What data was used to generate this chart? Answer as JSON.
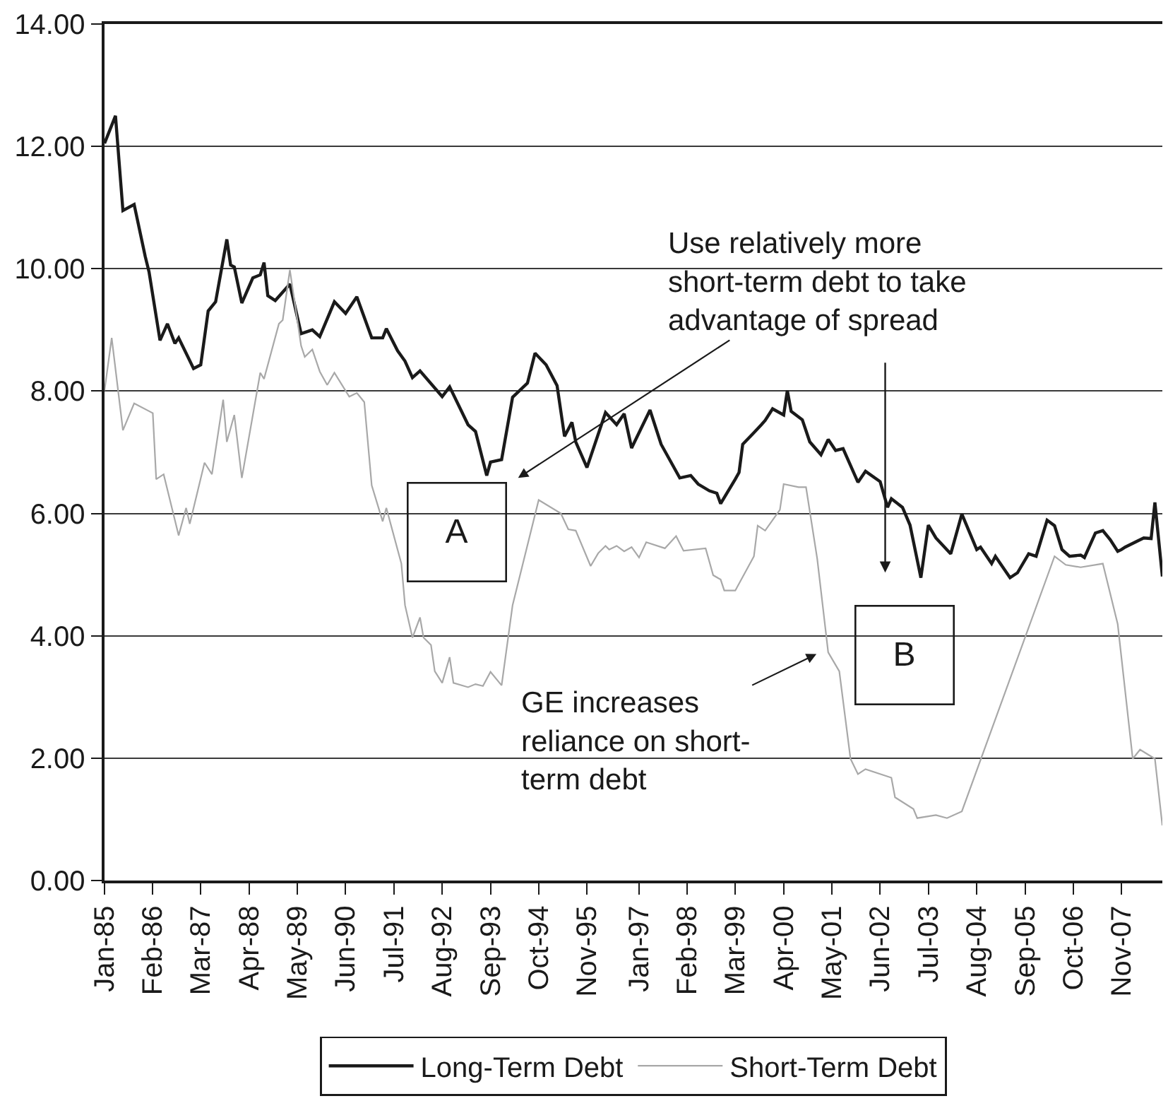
{
  "chart_data": {
    "type": "line",
    "series": [
      {
        "name": "Long-Term Debt",
        "color": "#1a1a1a",
        "x": [
          "1985-01",
          "1985-04",
          "1985-06",
          "1985-09",
          "1985-12",
          "1986-01",
          "1986-04",
          "1986-06",
          "1986-08",
          "1986-09",
          "1987-01",
          "1987-03",
          "1987-05",
          "1987-07",
          "1987-10",
          "1987-11",
          "1987-12",
          "1988-02",
          "1988-05",
          "1988-07",
          "1988-08",
          "1988-09",
          "1988-11",
          "1989-03",
          "1989-06",
          "1989-09",
          "1989-11",
          "1990-03",
          "1990-06",
          "1990-09",
          "1991-01",
          "1991-04",
          "1991-05",
          "1991-08",
          "1991-10",
          "1991-12",
          "1992-02",
          "1992-08",
          "1992-10",
          "1993-03",
          "1993-05",
          "1993-08",
          "1993-09",
          "1993-12",
          "1994-03",
          "1994-07",
          "1994-09",
          "1994-12",
          "1995-03",
          "1995-05",
          "1995-07",
          "1995-08",
          "1995-11",
          "1996-04",
          "1996-07",
          "1996-09",
          "1996-11",
          "1997-04",
          "1997-07",
          "1997-12",
          "1998-03",
          "1998-05",
          "1998-08",
          "1998-10",
          "1998-11",
          "1999-03",
          "1999-04",
          "1999-05",
          "1999-08",
          "1999-10",
          "1999-11",
          "2000-01",
          "2000-04",
          "2000-05",
          "2000-06",
          "2000-09",
          "2000-11",
          "2001-02",
          "2001-04",
          "2001-06",
          "2001-08",
          "2001-12",
          "2002-02",
          "2002-06",
          "2002-08",
          "2002-09",
          "2002-12",
          "2003-02",
          "2003-05",
          "2003-07",
          "2003-09",
          "2004-01",
          "2004-04",
          "2004-08",
          "2004-09",
          "2004-12",
          "2005-01",
          "2005-05",
          "2005-07",
          "2005-10",
          "2005-12",
          "2006-03",
          "2006-05",
          "2006-07",
          "2006-09",
          "2006-12",
          "2007-01",
          "2007-04",
          "2007-06",
          "2007-08",
          "2007-10",
          "2007-11",
          "2007-12",
          "2008-05",
          "2008-07",
          "2008-08",
          "2008-10"
        ],
        "values": [
          12.05,
          12.5,
          10.95,
          11.05,
          10.2,
          9.95,
          8.83,
          9.1,
          8.78,
          8.87,
          8.37,
          8.43,
          9.31,
          9.46,
          10.48,
          10.06,
          10.03,
          9.44,
          9.85,
          9.9,
          10.1,
          9.56,
          9.48,
          9.75,
          8.94,
          9.0,
          8.89,
          9.46,
          9.27,
          9.54,
          8.87,
          8.87,
          9.02,
          8.66,
          8.49,
          8.22,
          8.33,
          7.91,
          8.07,
          7.45,
          7.34,
          6.62,
          6.84,
          6.88,
          7.9,
          8.13,
          8.62,
          8.43,
          8.09,
          7.26,
          7.49,
          7.17,
          6.75,
          7.65,
          7.45,
          7.63,
          7.07,
          7.69,
          7.13,
          6.58,
          6.62,
          6.48,
          6.37,
          6.33,
          6.16,
          6.56,
          6.67,
          7.13,
          7.32,
          7.45,
          7.52,
          7.71,
          7.61,
          8.01,
          7.67,
          7.53,
          7.17,
          6.96,
          7.21,
          7.03,
          7.06,
          6.51,
          6.69,
          6.52,
          6.1,
          6.24,
          6.1,
          5.81,
          4.95,
          5.81,
          5.6,
          5.34,
          5.99,
          5.41,
          5.45,
          5.18,
          5.3,
          4.95,
          5.03,
          5.34,
          5.3,
          5.89,
          5.8,
          5.41,
          5.3,
          5.32,
          5.28,
          5.68,
          5.72,
          5.57,
          5.38,
          5.41,
          5.45,
          5.6,
          5.59,
          6.18,
          4.97
        ]
      },
      {
        "name": "Short-Term Debt",
        "color": "#a8a8a8",
        "x": [
          "1985-01",
          "1985-03",
          "1985-06",
          "1985-09",
          "1986-02",
          "1986-03",
          "1986-05",
          "1986-09",
          "1986-11",
          "1986-12",
          "1987-04",
          "1987-06",
          "1987-09",
          "1987-10",
          "1987-12",
          "1988-02",
          "1988-07",
          "1988-08",
          "1988-12",
          "1989-01",
          "1989-03",
          "1989-06",
          "1989-07",
          "1989-09",
          "1989-11",
          "1990-01",
          "1990-03",
          "1990-07",
          "1990-09",
          "1990-11",
          "1991-01",
          "1991-04",
          "1991-05",
          "1991-09",
          "1991-10",
          "1991-12",
          "1992-02",
          "1992-03",
          "1992-05",
          "1992-06",
          "1992-08",
          "1992-10",
          "1992-11",
          "1993-03",
          "1993-05",
          "1993-07",
          "1993-09",
          "1993-12",
          "1994-03",
          "1994-10",
          "1995-04",
          "1995-06",
          "1995-08",
          "1995-12",
          "1996-02",
          "1996-04",
          "1996-05",
          "1996-07",
          "1996-09",
          "1996-11",
          "1997-01",
          "1997-03",
          "1997-08",
          "1997-11",
          "1998-01",
          "1998-07",
          "1998-09",
          "1998-11",
          "1998-12",
          "1999-03",
          "1999-08",
          "1999-09",
          "1999-11",
          "2000-03",
          "2000-04",
          "2000-08",
          "2000-10",
          "2001-01",
          "2001-04",
          "2001-07",
          "2001-10",
          "2001-12",
          "2002-02",
          "2002-09",
          "2002-10",
          "2003-03",
          "2003-04",
          "2003-09",
          "2003-12",
          "2004-04",
          "2006-05",
          "2006-08",
          "2006-12",
          "2007-06",
          "2007-10",
          "2008-02",
          "2008-04",
          "2008-08",
          "2008-10"
        ],
        "values": [
          8.01,
          8.87,
          7.36,
          7.8,
          7.64,
          6.56,
          6.64,
          5.64,
          6.09,
          5.83,
          6.83,
          6.64,
          7.86,
          7.17,
          7.61,
          6.58,
          8.3,
          8.2,
          9.1,
          9.16,
          9.98,
          8.74,
          8.56,
          8.68,
          8.32,
          8.1,
          8.3,
          7.91,
          7.97,
          7.82,
          6.46,
          5.87,
          6.09,
          5.18,
          4.5,
          3.97,
          4.3,
          3.97,
          3.85,
          3.42,
          3.23,
          3.65,
          3.23,
          3.16,
          3.21,
          3.18,
          3.41,
          3.19,
          4.5,
          6.22,
          6.0,
          5.74,
          5.72,
          5.14,
          5.35,
          5.47,
          5.41,
          5.47,
          5.38,
          5.45,
          5.28,
          5.53,
          5.43,
          5.63,
          5.39,
          5.43,
          4.99,
          4.92,
          4.74,
          4.74,
          5.3,
          5.8,
          5.72,
          6.06,
          6.48,
          6.43,
          6.43,
          5.26,
          3.73,
          3.42,
          1.99,
          1.74,
          1.82,
          1.68,
          1.36,
          1.17,
          1.02,
          1.07,
          1.02,
          1.13,
          5.3,
          5.16,
          5.12,
          5.18,
          4.19,
          1.99,
          2.14,
          1.99,
          0.9
        ]
      }
    ],
    "xlim": [
      "1985-01",
      "2008-10"
    ],
    "xticks": [
      {
        "value": "1985-01",
        "label": "Jan-85"
      },
      {
        "value": "1986-02",
        "label": "Feb-86"
      },
      {
        "value": "1987-03",
        "label": "Mar-87"
      },
      {
        "value": "1988-04",
        "label": "Apr-88"
      },
      {
        "value": "1989-05",
        "label": "May-89"
      },
      {
        "value": "1990-06",
        "label": "Jun-90"
      },
      {
        "value": "1991-07",
        "label": "Jul-91"
      },
      {
        "value": "1992-08",
        "label": "Aug-92"
      },
      {
        "value": "1993-09",
        "label": "Sep-93"
      },
      {
        "value": "1994-10",
        "label": "Oct-94"
      },
      {
        "value": "1995-11",
        "label": "Nov-95"
      },
      {
        "value": "1997-01",
        "label": "Jan-97"
      },
      {
        "value": "1998-02",
        "label": "Feb-98"
      },
      {
        "value": "1999-03",
        "label": "Mar-99"
      },
      {
        "value": "2000-04",
        "label": "Apr-00"
      },
      {
        "value": "2001-05",
        "label": "May-01"
      },
      {
        "value": "2002-06",
        "label": "Jun-02"
      },
      {
        "value": "2003-07",
        "label": "Jul-03"
      },
      {
        "value": "2004-08",
        "label": "Aug-04"
      },
      {
        "value": "2005-09",
        "label": "Sep-05"
      },
      {
        "value": "2006-10",
        "label": "Oct-06"
      },
      {
        "value": "2007-11",
        "label": "Nov-07"
      }
    ],
    "ylim": [
      0,
      14
    ],
    "yticks": [
      {
        "value": 0,
        "label": "0.00"
      },
      {
        "value": 2,
        "label": "2.00"
      },
      {
        "value": 4,
        "label": "4.00"
      },
      {
        "value": 6,
        "label": "6.00"
      },
      {
        "value": 8,
        "label": "8.00"
      },
      {
        "value": 10,
        "label": "10.00"
      },
      {
        "value": 12,
        "label": "12.00"
      },
      {
        "value": 14,
        "label": "14.00"
      }
    ],
    "grid": "y",
    "legend": "bottom",
    "annotations": [
      "A",
      "B",
      "Use relatively more short-term debt to take advantage of spread",
      "GE increases reliance on short-term debt"
    ]
  }
}
